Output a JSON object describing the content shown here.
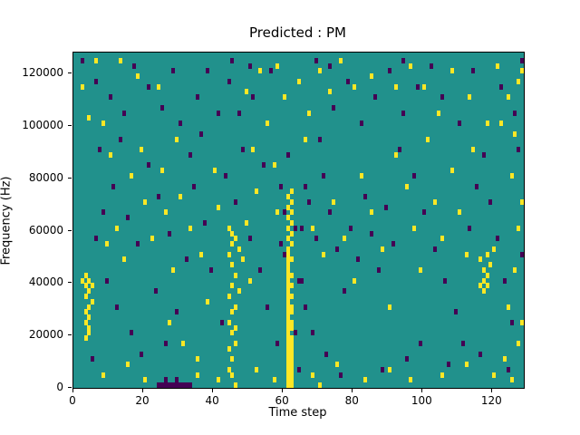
{
  "chart_data": {
    "type": "heatmap",
    "title": "Predicted : PM",
    "xlabel": "Time step",
    "ylabel": "Frequency (Hz)",
    "xlim": [
      0,
      129
    ],
    "ylim": [
      0,
      128000
    ],
    "x_ticks": [
      0,
      20,
      40,
      60,
      80,
      100,
      120
    ],
    "y_ticks": [
      0,
      20000,
      40000,
      60000,
      80000,
      100000,
      120000
    ],
    "grid": {
      "cols": 129,
      "rows": 64,
      "hz_per_row": 2000
    },
    "legend": "none",
    "colors": {
      "background": "#21918c",
      "high": "#fde725",
      "low": "#440154",
      "axes": "#000000"
    },
    "yellow_cells": [
      [
        3,
        21
      ],
      [
        4,
        20
      ],
      [
        3,
        19
      ],
      [
        4,
        18
      ],
      [
        3,
        17
      ],
      [
        5,
        16
      ],
      [
        4,
        15
      ],
      [
        3,
        14
      ],
      [
        4,
        13
      ],
      [
        3,
        12
      ],
      [
        4,
        11
      ],
      [
        4,
        10
      ],
      [
        3,
        9
      ],
      [
        2,
        20
      ],
      [
        5,
        19
      ],
      [
        4,
        51
      ],
      [
        8,
        50
      ],
      [
        2,
        57
      ],
      [
        13,
        62
      ],
      [
        18,
        59
      ],
      [
        24,
        57
      ],
      [
        6,
        62
      ],
      [
        10,
        44
      ],
      [
        16,
        40
      ],
      [
        20,
        35
      ],
      [
        12,
        30
      ],
      [
        9,
        27
      ],
      [
        14,
        24
      ],
      [
        22,
        28
      ],
      [
        26,
        33
      ],
      [
        19,
        45
      ],
      [
        25,
        41
      ],
      [
        28,
        22
      ],
      [
        30,
        36
      ],
      [
        33,
        30
      ],
      [
        27,
        12
      ],
      [
        31,
        8
      ],
      [
        35,
        5
      ],
      [
        38,
        16
      ],
      [
        36,
        25
      ],
      [
        40,
        41
      ],
      [
        41,
        34
      ],
      [
        29,
        47
      ],
      [
        44,
        3
      ],
      [
        45,
        5
      ],
      [
        44,
        7
      ],
      [
        46,
        8
      ],
      [
        45,
        10
      ],
      [
        44,
        12
      ],
      [
        45,
        14
      ],
      [
        46,
        15
      ],
      [
        44,
        17
      ],
      [
        45,
        19
      ],
      [
        46,
        21
      ],
      [
        45,
        23
      ],
      [
        44,
        25
      ],
      [
        45,
        27
      ],
      [
        46,
        28
      ],
      [
        45,
        29
      ],
      [
        44,
        30
      ],
      [
        47,
        26
      ],
      [
        47,
        18
      ],
      [
        46,
        11
      ],
      [
        45,
        2
      ],
      [
        48,
        24
      ],
      [
        49,
        31
      ],
      [
        50,
        20
      ],
      [
        52,
        37
      ],
      [
        51,
        45
      ],
      [
        55,
        50
      ],
      [
        57,
        42
      ],
      [
        58,
        33
      ],
      [
        49,
        56
      ],
      [
        53,
        60
      ],
      [
        58,
        61
      ],
      [
        60,
        55
      ],
      [
        64,
        58
      ],
      [
        67,
        52
      ],
      [
        70,
        60
      ],
      [
        73,
        56
      ],
      [
        76,
        62
      ],
      [
        66,
        47
      ],
      [
        61,
        0
      ],
      [
        62,
        0
      ],
      [
        61,
        1
      ],
      [
        62,
        1
      ],
      [
        61,
        2
      ],
      [
        62,
        2
      ],
      [
        61,
        3
      ],
      [
        62,
        3
      ],
      [
        61,
        4
      ],
      [
        62,
        4
      ],
      [
        61,
        5
      ],
      [
        62,
        5
      ],
      [
        61,
        6
      ],
      [
        62,
        6
      ],
      [
        61,
        7
      ],
      [
        62,
        7
      ],
      [
        61,
        8
      ],
      [
        62,
        8
      ],
      [
        61,
        9
      ],
      [
        62,
        9
      ],
      [
        61,
        10
      ],
      [
        61,
        11
      ],
      [
        62,
        11
      ],
      [
        61,
        12
      ],
      [
        62,
        12
      ],
      [
        61,
        13
      ],
      [
        61,
        14
      ],
      [
        62,
        14
      ],
      [
        61,
        15
      ],
      [
        62,
        15
      ],
      [
        61,
        16
      ],
      [
        61,
        17
      ],
      [
        62,
        17
      ],
      [
        61,
        18
      ],
      [
        61,
        19
      ],
      [
        62,
        19
      ],
      [
        61,
        20
      ],
      [
        61,
        21
      ],
      [
        62,
        21
      ],
      [
        61,
        22
      ],
      [
        61,
        23
      ],
      [
        61,
        24
      ],
      [
        62,
        24
      ],
      [
        61,
        25
      ],
      [
        61,
        26
      ],
      [
        62,
        27
      ],
      [
        61,
        28
      ],
      [
        62,
        29
      ],
      [
        61,
        30
      ],
      [
        62,
        31
      ],
      [
        61,
        32
      ],
      [
        62,
        33
      ],
      [
        61,
        34
      ],
      [
        62,
        35
      ],
      [
        61,
        36
      ],
      [
        62,
        37
      ],
      [
        68,
        30
      ],
      [
        71,
        25
      ],
      [
        74,
        35
      ],
      [
        77,
        28
      ],
      [
        80,
        20
      ],
      [
        82,
        40
      ],
      [
        85,
        33
      ],
      [
        88,
        26
      ],
      [
        90,
        15
      ],
      [
        92,
        44
      ],
      [
        95,
        38
      ],
      [
        97,
        30
      ],
      [
        99,
        22
      ],
      [
        101,
        47
      ],
      [
        103,
        35
      ],
      [
        105,
        28
      ],
      [
        108,
        41
      ],
      [
        110,
        33
      ],
      [
        112,
        25
      ],
      [
        114,
        45
      ],
      [
        116,
        24
      ],
      [
        117,
        22
      ],
      [
        118,
        21
      ],
      [
        117,
        20
      ],
      [
        118,
        19
      ],
      [
        117,
        18
      ],
      [
        118,
        25
      ],
      [
        119,
        23
      ],
      [
        116,
        19
      ],
      [
        120,
        26
      ],
      [
        122,
        50
      ],
      [
        124,
        55
      ],
      [
        126,
        48
      ],
      [
        127,
        58
      ],
      [
        125,
        40
      ],
      [
        127,
        30
      ],
      [
        126,
        22
      ],
      [
        124,
        15
      ],
      [
        127,
        8
      ],
      [
        123,
        5
      ],
      [
        128,
        60
      ],
      [
        128,
        35
      ],
      [
        128,
        12
      ],
      [
        100,
        57
      ],
      [
        104,
        52
      ],
      [
        108,
        60
      ],
      [
        113,
        55
      ],
      [
        118,
        50
      ],
      [
        121,
        61
      ],
      [
        96,
        61
      ],
      [
        92,
        57
      ],
      [
        85,
        59
      ],
      [
        80,
        57
      ],
      [
        8,
        2
      ],
      [
        15,
        4
      ],
      [
        20,
        1
      ],
      [
        35,
        2
      ],
      [
        41,
        1
      ],
      [
        52,
        3
      ],
      [
        57,
        1
      ],
      [
        68,
        2
      ],
      [
        75,
        4
      ],
      [
        83,
        1
      ],
      [
        90,
        3
      ],
      [
        96,
        1
      ],
      [
        105,
        2
      ],
      [
        112,
        4
      ],
      [
        120,
        2
      ],
      [
        125,
        1
      ],
      [
        46,
        0
      ],
      [
        70,
        0
      ]
    ],
    "purple_cells": [
      [
        2,
        62
      ],
      [
        6,
        58
      ],
      [
        10,
        55
      ],
      [
        14,
        52
      ],
      [
        17,
        61
      ],
      [
        21,
        57
      ],
      [
        25,
        53
      ],
      [
        28,
        60
      ],
      [
        30,
        50
      ],
      [
        7,
        45
      ],
      [
        11,
        38
      ],
      [
        15,
        32
      ],
      [
        18,
        27
      ],
      [
        21,
        42
      ],
      [
        24,
        36
      ],
      [
        27,
        29
      ],
      [
        9,
        20
      ],
      [
        12,
        15
      ],
      [
        16,
        10
      ],
      [
        19,
        6
      ],
      [
        23,
        18
      ],
      [
        26,
        8
      ],
      [
        29,
        14
      ],
      [
        32,
        24
      ],
      [
        34,
        38
      ],
      [
        37,
        31
      ],
      [
        39,
        22
      ],
      [
        42,
        12
      ],
      [
        8,
        33
      ],
      [
        13,
        47
      ],
      [
        5,
        5
      ],
      [
        6,
        28
      ],
      [
        24,
        0
      ],
      [
        25,
        0
      ],
      [
        26,
        0
      ],
      [
        27,
        0
      ],
      [
        28,
        0
      ],
      [
        29,
        0
      ],
      [
        30,
        0
      ],
      [
        31,
        0
      ],
      [
        32,
        0
      ],
      [
        33,
        0
      ],
      [
        26,
        1
      ],
      [
        29,
        1
      ],
      [
        43,
        40
      ],
      [
        46,
        35
      ],
      [
        48,
        45
      ],
      [
        50,
        28
      ],
      [
        53,
        22
      ],
      [
        55,
        15
      ],
      [
        58,
        8
      ],
      [
        60,
        25
      ],
      [
        63,
        30
      ],
      [
        65,
        20
      ],
      [
        67,
        35
      ],
      [
        69,
        28
      ],
      [
        71,
        40
      ],
      [
        73,
        33
      ],
      [
        75,
        26
      ],
      [
        77,
        18
      ],
      [
        79,
        30
      ],
      [
        81,
        24
      ],
      [
        83,
        36
      ],
      [
        85,
        29
      ],
      [
        87,
        22
      ],
      [
        89,
        34
      ],
      [
        91,
        27
      ],
      [
        66,
        15
      ],
      [
        68,
        10
      ],
      [
        72,
        6
      ],
      [
        76,
        2
      ],
      [
        64,
        3
      ],
      [
        59,
        38
      ],
      [
        54,
        42
      ],
      [
        47,
        52
      ],
      [
        44,
        58
      ],
      [
        51,
        55
      ],
      [
        56,
        60
      ],
      [
        61,
        44
      ],
      [
        70,
        47
      ],
      [
        74,
        53
      ],
      [
        78,
        58
      ],
      [
        82,
        50
      ],
      [
        86,
        55
      ],
      [
        90,
        60
      ],
      [
        94,
        52
      ],
      [
        98,
        57
      ],
      [
        102,
        61
      ],
      [
        93,
        45
      ],
      [
        97,
        40
      ],
      [
        100,
        33
      ],
      [
        103,
        26
      ],
      [
        106,
        20
      ],
      [
        109,
        14
      ],
      [
        111,
        8
      ],
      [
        113,
        30
      ],
      [
        115,
        38
      ],
      [
        117,
        44
      ],
      [
        119,
        35
      ],
      [
        121,
        28
      ],
      [
        123,
        20
      ],
      [
        125,
        12
      ],
      [
        127,
        45
      ],
      [
        128,
        25
      ],
      [
        105,
        55
      ],
      [
        110,
        50
      ],
      [
        114,
        60
      ],
      [
        122,
        57
      ],
      [
        126,
        52
      ],
      [
        95,
        5
      ],
      [
        88,
        3
      ],
      [
        99,
        8
      ],
      [
        107,
        4
      ],
      [
        116,
        6
      ],
      [
        124,
        3
      ],
      [
        128,
        62
      ],
      [
        35,
        55
      ],
      [
        38,
        60
      ],
      [
        41,
        52
      ],
      [
        33,
        44
      ],
      [
        36,
        48
      ],
      [
        63,
        10
      ],
      [
        64,
        20
      ],
      [
        65,
        30
      ],
      [
        66,
        38
      ],
      [
        60,
        33
      ],
      [
        59,
        27
      ],
      [
        69,
        62
      ],
      [
        73,
        61
      ],
      [
        94,
        62
      ],
      [
        45,
        62
      ],
      [
        50,
        61
      ]
    ]
  }
}
